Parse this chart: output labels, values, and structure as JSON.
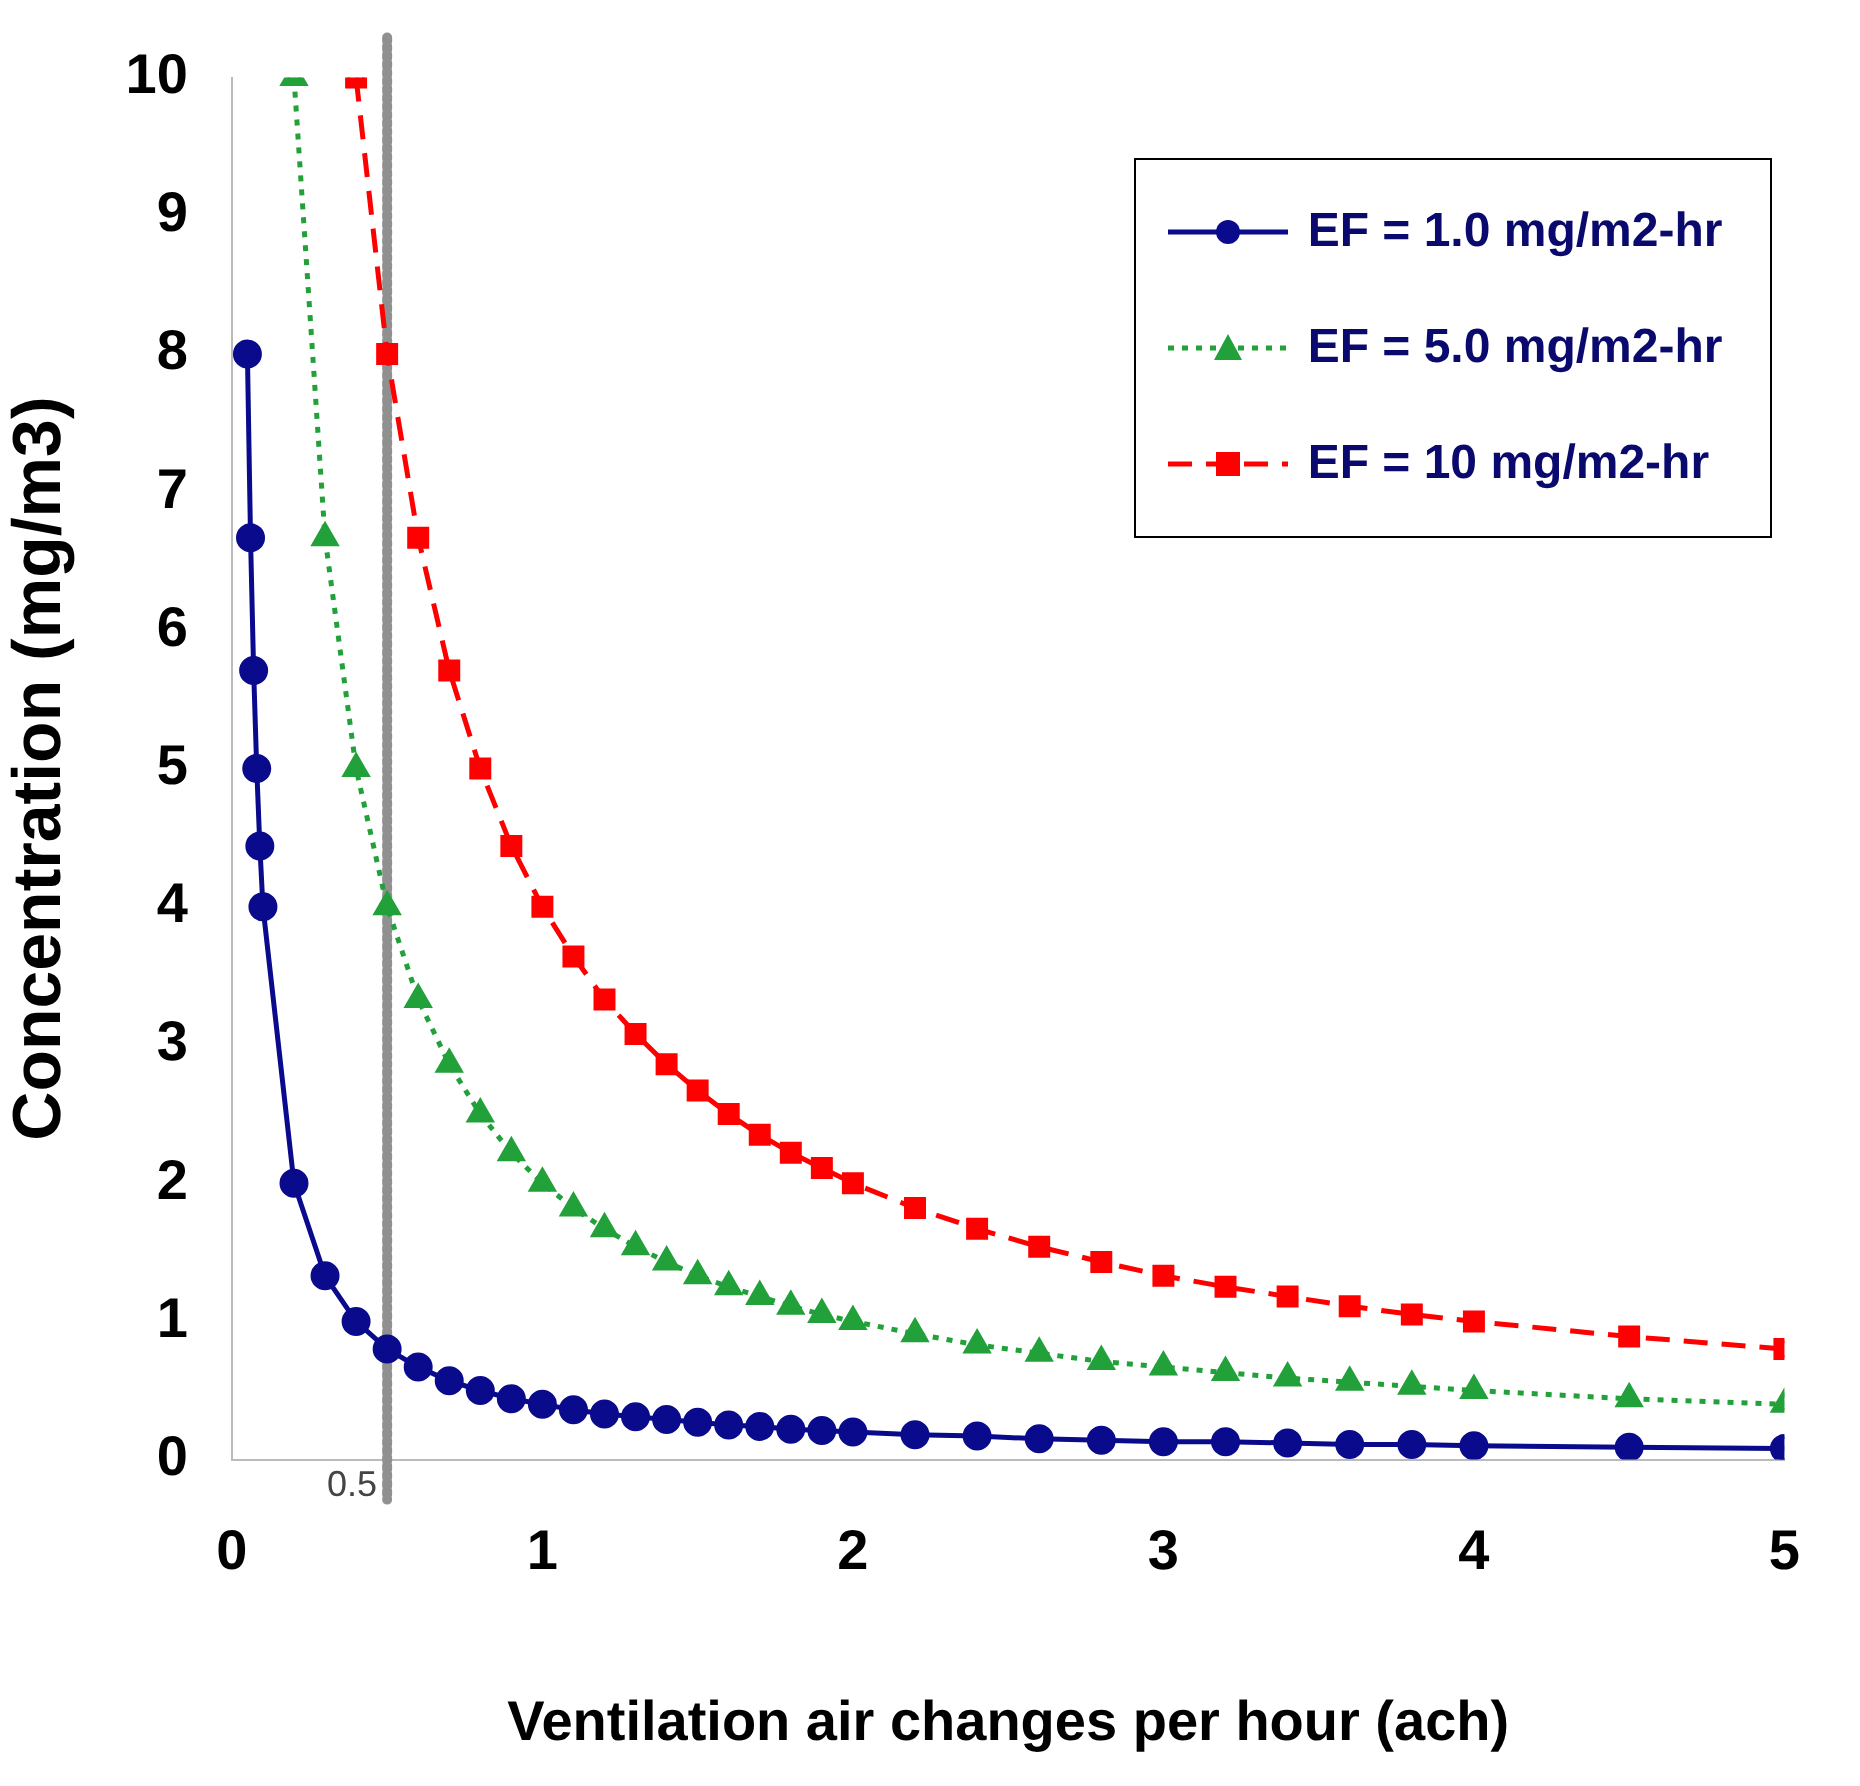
{
  "chart_data": {
    "type": "line",
    "xlabel": "Ventilation air changes per hour (ach)",
    "ylabel": "Concentration (mg/m3)",
    "xlim": [
      0,
      5
    ],
    "xticks": [
      0,
      1,
      2,
      3,
      4,
      5
    ],
    "ylim": [
      0,
      10
    ],
    "yticks": [
      0,
      1,
      2,
      3,
      4,
      5,
      6,
      7,
      8,
      9,
      10
    ],
    "grid": false,
    "legend": "top right",
    "series": [
      {
        "name": "EF = 1.0 mg/m2-hr",
        "color": "#0a0a8c",
        "marker": "circle",
        "line_style": "solid",
        "x": [
          0.05,
          0.06,
          0.07,
          0.08,
          0.09,
          0.1,
          0.2,
          0.3,
          0.4,
          0.5,
          0.6,
          0.7,
          0.8,
          0.9,
          1.0,
          1.1,
          1.2,
          1.3,
          1.4,
          1.5,
          1.6,
          1.7,
          1.8,
          1.9,
          2.0,
          2.2,
          2.4,
          2.6,
          2.8,
          3.0,
          3.2,
          3.4,
          3.6,
          3.8,
          4.0,
          4.5,
          5.0
        ],
        "values": [
          8,
          6.67,
          5.71,
          5,
          4.44,
          4,
          2,
          1.33,
          1,
          0.8,
          0.67,
          0.57,
          0.5,
          0.44,
          0.4,
          0.36,
          0.33,
          0.31,
          0.29,
          0.27,
          0.25,
          0.24,
          0.22,
          0.21,
          0.2,
          0.18,
          0.17,
          0.15,
          0.14,
          0.13,
          0.13,
          0.12,
          0.11,
          0.11,
          0.1,
          0.09,
          0.08
        ]
      },
      {
        "name": "EF = 5.0 mg/m2-hr",
        "color": "#22a03a",
        "marker": "triangle",
        "line_style": "dotted",
        "x": [
          0.2,
          0.3,
          0.4,
          0.5,
          0.6,
          0.7,
          0.8,
          0.9,
          1.0,
          1.1,
          1.2,
          1.3,
          1.4,
          1.5,
          1.6,
          1.7,
          1.8,
          1.9,
          2.0,
          2.2,
          2.4,
          2.6,
          2.8,
          3.0,
          3.2,
          3.4,
          3.6,
          3.8,
          4.0,
          4.5,
          5.0
        ],
        "values": [
          10,
          6.67,
          5,
          4,
          3.33,
          2.86,
          2.5,
          2.22,
          2,
          1.82,
          1.67,
          1.54,
          1.43,
          1.33,
          1.25,
          1.18,
          1.11,
          1.05,
          1,
          0.91,
          0.83,
          0.77,
          0.71,
          0.67,
          0.63,
          0.59,
          0.56,
          0.53,
          0.5,
          0.44,
          0.4
        ]
      },
      {
        "name": "EF = 10 mg/m2-hr",
        "color": "#ff0000",
        "marker": "square",
        "line_style": "dashed",
        "x": [
          0.4,
          0.5,
          0.6,
          0.7,
          0.8,
          0.9,
          1.0,
          1.1,
          1.2,
          1.3,
          1.4,
          1.5,
          1.6,
          1.7,
          1.8,
          1.9,
          2.0,
          2.2,
          2.4,
          2.6,
          2.8,
          3.0,
          3.2,
          3.4,
          3.6,
          3.8,
          4.0,
          4.5,
          5.0
        ],
        "values": [
          10,
          8,
          6.67,
          5.71,
          5,
          4.44,
          4,
          3.64,
          3.33,
          3.08,
          2.86,
          2.67,
          2.5,
          2.35,
          2.22,
          2.11,
          2,
          1.82,
          1.67,
          1.54,
          1.43,
          1.33,
          1.25,
          1.18,
          1.11,
          1.05,
          1,
          0.89,
          0.8
        ]
      }
    ],
    "ref_lines": [
      {
        "axis": "x",
        "value": 0.5,
        "label": "0.5",
        "color": "#909090",
        "line_style": "dotted"
      }
    ]
  }
}
